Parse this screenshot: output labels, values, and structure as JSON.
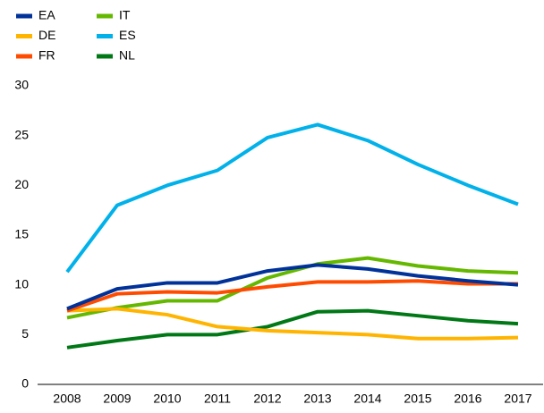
{
  "chart_data": {
    "type": "line",
    "categories": [
      "2008",
      "2009",
      "2010",
      "2011",
      "2012",
      "2013",
      "2014",
      "2015",
      "2016",
      "2017"
    ],
    "series": [
      {
        "name": "EA",
        "color": "#003299",
        "values": [
          7.6,
          9.6,
          10.2,
          10.2,
          11.4,
          12.0,
          11.6,
          10.9,
          10.4,
          10.0
        ]
      },
      {
        "name": "DE",
        "color": "#ffb400",
        "values": [
          7.4,
          7.6,
          7.0,
          5.8,
          5.4,
          5.2,
          5.0,
          4.6,
          4.6,
          4.7
        ]
      },
      {
        "name": "FR",
        "color": "#ff4b00",
        "values": [
          7.4,
          9.1,
          9.3,
          9.2,
          9.8,
          10.3,
          10.3,
          10.4,
          10.1,
          10.1
        ]
      },
      {
        "name": "IT",
        "color": "#65b800",
        "values": [
          6.7,
          7.7,
          8.4,
          8.4,
          10.7,
          12.1,
          12.7,
          11.9,
          11.4,
          11.2
        ]
      },
      {
        "name": "ES",
        "color": "#00b1ea",
        "values": [
          11.3,
          18.0,
          20.0,
          21.5,
          24.8,
          26.1,
          24.5,
          22.1,
          20.0,
          18.1
        ]
      },
      {
        "name": "NL",
        "color": "#007816",
        "values": [
          3.7,
          4.4,
          5.0,
          5.0,
          5.8,
          7.3,
          7.4,
          6.9,
          6.4,
          6.1
        ]
      }
    ],
    "ylim": [
      0,
      30
    ],
    "yticks": [
      0,
      5,
      10,
      15,
      20,
      25,
      30
    ],
    "grid": false
  }
}
